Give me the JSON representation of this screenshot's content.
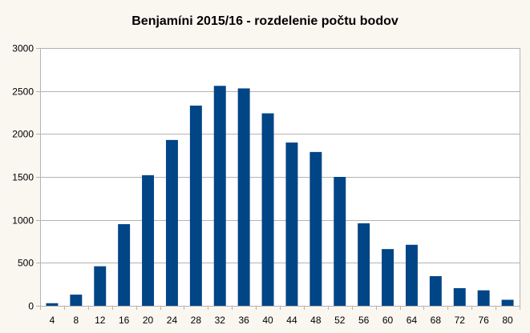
{
  "chart_data": {
    "type": "bar",
    "title": "Benjamíni 2015/16 - rozdelenie počtu bodov",
    "xlabel": "",
    "ylabel": "",
    "categories": [
      "4",
      "8",
      "12",
      "16",
      "20",
      "24",
      "28",
      "32",
      "36",
      "40",
      "44",
      "48",
      "52",
      "56",
      "60",
      "64",
      "68",
      "72",
      "76",
      "80"
    ],
    "series": [
      {
        "values": [
          30,
          130,
          460,
          950,
          1520,
          1930,
          2330,
          2560,
          2530,
          2240,
          1900,
          1790,
          1500,
          960,
          660,
          710,
          345,
          205,
          180,
          70
        ]
      }
    ],
    "ylim": [
      0,
      3000
    ],
    "yticks": [
      0,
      500,
      1000,
      1500,
      2000,
      2500,
      3000
    ],
    "grid": true,
    "legend": "none",
    "bar_color": "#004586",
    "grid_color": "#b3b3b3",
    "axis_color": "#b3b3b3",
    "background": "#faf6f0",
    "plot_background": "#ffffff"
  }
}
